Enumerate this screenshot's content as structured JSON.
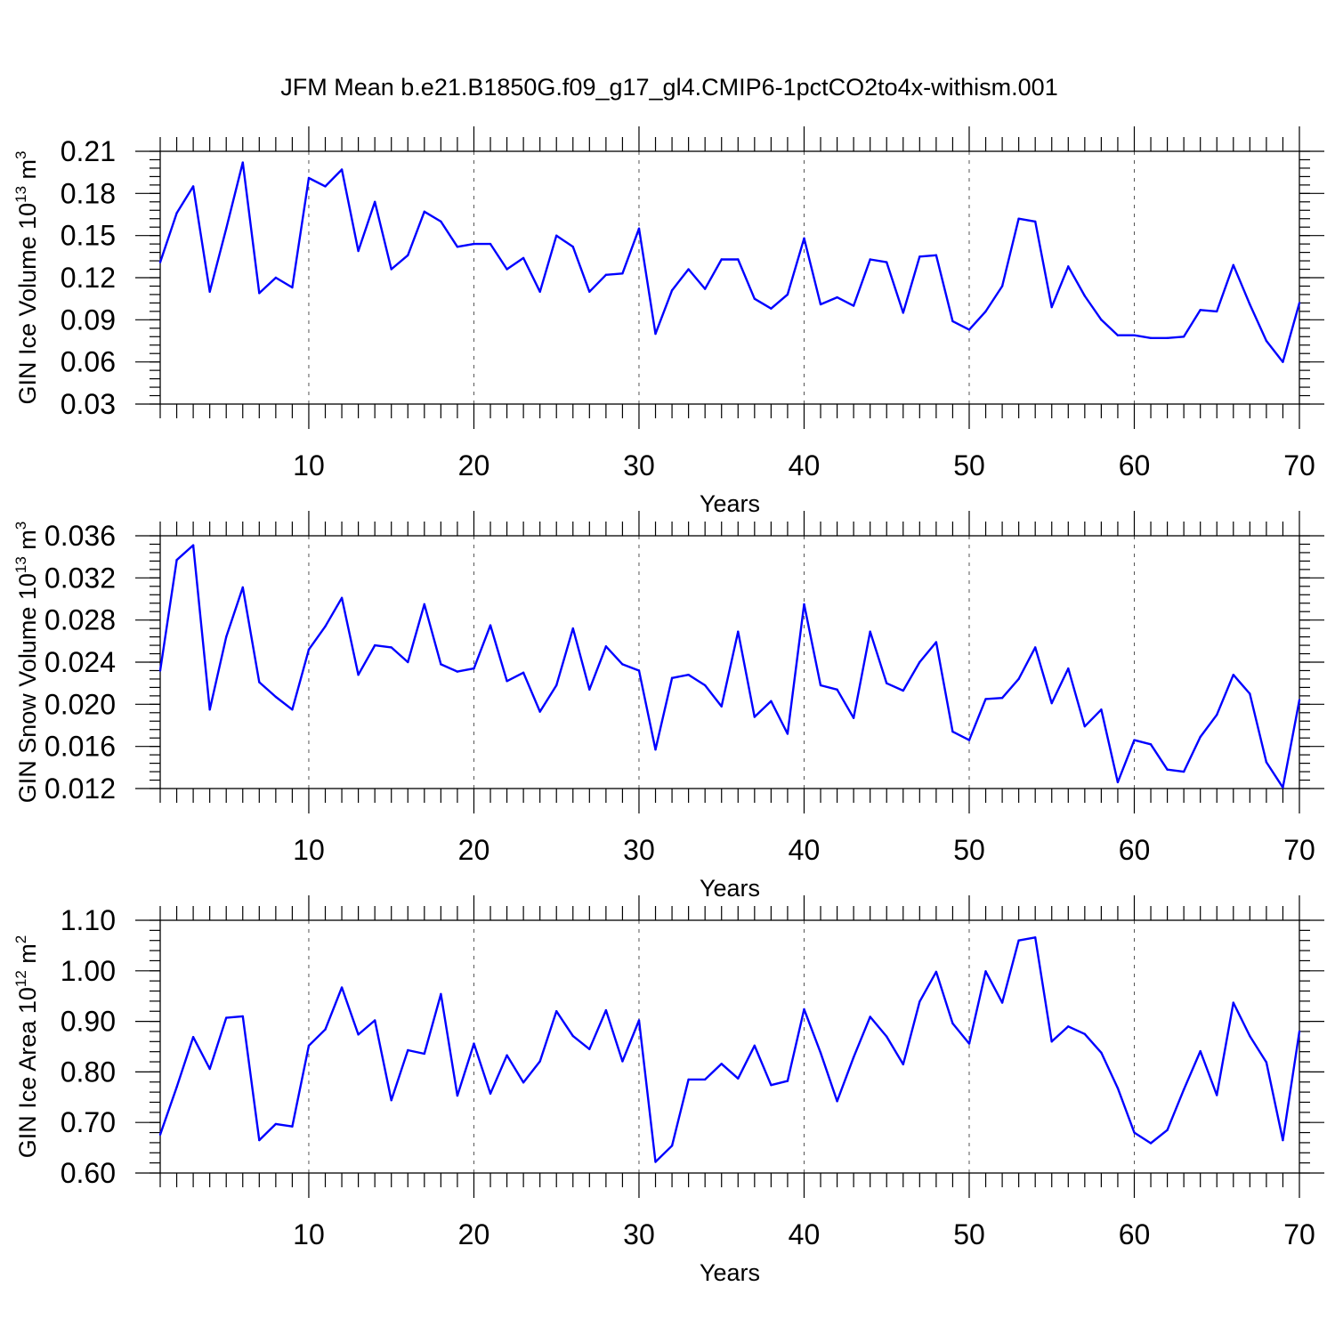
{
  "title": "JFM Mean b.e21.B1850G.f09_g17_gl4.CMIP6-1pctCO2to4x-withism.001",
  "colors": {
    "series": "#0000ff",
    "frame": "#000000",
    "grid": "#555555"
  },
  "chart_data": [
    {
      "type": "line",
      "xlabel": "Years",
      "ylabel": {
        "main": "GIN Ice Volume 10",
        "sup": "13",
        "unit": " m",
        "unit_sup": "3"
      },
      "xlim": [
        1,
        70
      ],
      "ylim": [
        0.03,
        0.21
      ],
      "xticks": [
        10,
        20,
        30,
        40,
        50,
        60,
        70
      ],
      "yticks": [
        0.03,
        0.06,
        0.09,
        0.12,
        0.15,
        0.18,
        0.21
      ],
      "ytick_labels": [
        "0.03",
        "0.06",
        "0.09",
        "0.12",
        "0.15",
        "0.18",
        "0.21"
      ],
      "y_minor_step": 0.006,
      "grid": "vertical dashed at major x ticks",
      "values": [
        0.131,
        0.166,
        0.185,
        0.11,
        0.155,
        0.202,
        0.109,
        0.12,
        0.113,
        0.191,
        0.185,
        0.197,
        0.139,
        0.174,
        0.126,
        0.136,
        0.167,
        0.16,
        0.142,
        0.144,
        0.144,
        0.126,
        0.134,
        0.11,
        0.15,
        0.142,
        0.11,
        0.122,
        0.123,
        0.155,
        0.08,
        0.111,
        0.126,
        0.112,
        0.133,
        0.133,
        0.105,
        0.098,
        0.108,
        0.148,
        0.101,
        0.106,
        0.1,
        0.133,
        0.131,
        0.095,
        0.135,
        0.136,
        0.089,
        0.083,
        0.096,
        0.114,
        0.162,
        0.16,
        0.099,
        0.128,
        0.107,
        0.09,
        0.079,
        0.079,
        0.077,
        0.077,
        0.078,
        0.097,
        0.096,
        0.129,
        0.101,
        0.075,
        0.06,
        0.102
      ]
    },
    {
      "type": "line",
      "xlabel": "Years",
      "ylabel": {
        "main": "GIN Snow Volume 10",
        "sup": "13",
        "unit": " m",
        "unit_sup": "3"
      },
      "xlim": [
        1,
        70
      ],
      "ylim": [
        0.012,
        0.036
      ],
      "xticks": [
        10,
        20,
        30,
        40,
        50,
        60,
        70
      ],
      "yticks": [
        0.012,
        0.016,
        0.02,
        0.024,
        0.028,
        0.032,
        0.036
      ],
      "ytick_labels": [
        "0.012",
        "0.016",
        "0.020",
        "0.024",
        "0.028",
        "0.032",
        "0.036"
      ],
      "y_minor_step": 0.0008,
      "grid": "vertical dashed at major x ticks",
      "values": [
        0.0232,
        0.0337,
        0.0351,
        0.0195,
        0.0264,
        0.0311,
        0.0221,
        0.0207,
        0.0195,
        0.0252,
        0.0274,
        0.0301,
        0.0228,
        0.0256,
        0.0254,
        0.024,
        0.0295,
        0.0238,
        0.0231,
        0.0234,
        0.0275,
        0.0222,
        0.023,
        0.0193,
        0.0218,
        0.0272,
        0.0214,
        0.0255,
        0.0238,
        0.0232,
        0.0157,
        0.0225,
        0.0228,
        0.0218,
        0.0198,
        0.0269,
        0.0188,
        0.0203,
        0.0172,
        0.0295,
        0.0218,
        0.0214,
        0.0187,
        0.0269,
        0.022,
        0.0213,
        0.024,
        0.0259,
        0.0174,
        0.0166,
        0.0205,
        0.0206,
        0.0224,
        0.0254,
        0.0201,
        0.0234,
        0.0179,
        0.0195,
        0.0126,
        0.0166,
        0.0162,
        0.0138,
        0.0136,
        0.0169,
        0.019,
        0.0228,
        0.021,
        0.0145,
        0.0121,
        0.0204
      ]
    },
    {
      "type": "line",
      "xlabel": "Years",
      "ylabel": {
        "main": "GIN Ice Area 10",
        "sup": "12",
        "unit": " m",
        "unit_sup": "2"
      },
      "xlim": [
        1,
        70
      ],
      "ylim": [
        0.6,
        1.1
      ],
      "xticks": [
        10,
        20,
        30,
        40,
        50,
        60,
        70
      ],
      "yticks": [
        0.6,
        0.7,
        0.8,
        0.9,
        1.0,
        1.1
      ],
      "ytick_labels": [
        "0.60",
        "0.70",
        "0.80",
        "0.90",
        "1.00",
        "1.10"
      ],
      "y_minor_step": 0.02,
      "grid": "vertical dashed at major x ticks",
      "values": [
        0.676,
        0.77,
        0.869,
        0.806,
        0.907,
        0.91,
        0.665,
        0.697,
        0.692,
        0.852,
        0.884,
        0.967,
        0.874,
        0.902,
        0.744,
        0.843,
        0.836,
        0.954,
        0.753,
        0.856,
        0.757,
        0.833,
        0.779,
        0.821,
        0.92,
        0.871,
        0.845,
        0.922,
        0.821,
        0.902,
        0.622,
        0.654,
        0.785,
        0.785,
        0.816,
        0.787,
        0.852,
        0.774,
        0.782,
        0.924,
        0.838,
        0.742,
        0.829,
        0.909,
        0.87,
        0.815,
        0.939,
        0.998,
        0.896,
        0.856,
        0.999,
        0.937,
        1.06,
        1.066,
        0.86,
        0.89,
        0.875,
        0.838,
        0.768,
        0.68,
        0.659,
        0.685,
        0.765,
        0.841,
        0.754,
        0.937,
        0.871,
        0.819,
        0.665,
        0.88
      ]
    }
  ]
}
